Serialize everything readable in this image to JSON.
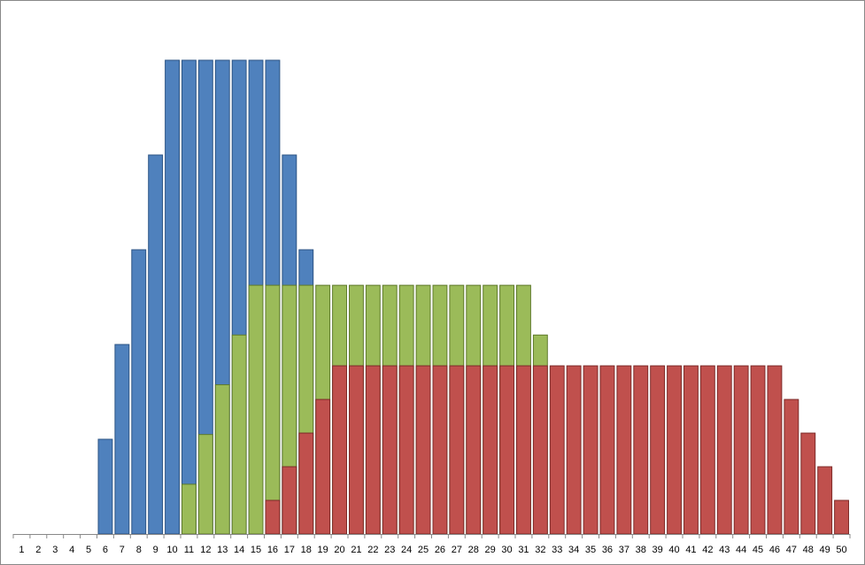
{
  "chart_data": {
    "type": "bar",
    "overlap": true,
    "categories": [
      "1",
      "2",
      "3",
      "4",
      "5",
      "6",
      "7",
      "8",
      "9",
      "10",
      "11",
      "12",
      "13",
      "14",
      "15",
      "16",
      "17",
      "18",
      "19",
      "20",
      "21",
      "22",
      "23",
      "24",
      "25",
      "26",
      "27",
      "28",
      "29",
      "30",
      "31",
      "32",
      "33",
      "34",
      "35",
      "36",
      "37",
      "38",
      "39",
      "40",
      "41",
      "42",
      "43",
      "44",
      "45",
      "46",
      "47",
      "48",
      "49",
      "50"
    ],
    "ylim": [
      0,
      100
    ],
    "series": [
      {
        "color": "#4f81bd",
        "stroke": "#2c5484",
        "values": [
          0,
          0,
          0,
          0,
          0,
          20,
          40,
          60,
          80,
          100,
          100,
          100,
          100,
          100,
          100,
          100,
          80,
          60,
          0,
          0,
          0,
          0,
          0,
          0,
          0,
          0,
          0,
          0,
          0,
          0,
          0,
          0,
          0,
          0,
          0,
          0,
          0,
          0,
          0,
          0,
          0,
          0,
          0,
          0,
          0,
          0,
          0,
          0,
          0,
          0
        ]
      },
      {
        "color": "#9bbb59",
        "stroke": "#5f7a2c",
        "values": [
          0,
          0,
          0,
          0,
          0,
          0,
          0,
          0,
          0,
          0,
          10.5,
          21,
          31.5,
          42,
          52.5,
          52.5,
          52.5,
          52.5,
          52.5,
          52.5,
          52.5,
          52.5,
          52.5,
          52.5,
          52.5,
          52.5,
          52.5,
          52.5,
          52.5,
          52.5,
          52.5,
          42,
          0,
          0,
          0,
          0,
          0,
          0,
          0,
          0,
          0,
          0,
          0,
          0,
          0,
          0,
          0,
          0,
          0,
          0
        ]
      },
      {
        "color": "#c0504d",
        "stroke": "#7d2a28",
        "values": [
          0,
          0,
          0,
          0,
          0,
          0,
          0,
          0,
          0,
          0,
          0,
          0,
          0,
          0,
          0,
          7.1,
          14.2,
          21.3,
          28.4,
          35.5,
          35.5,
          35.5,
          35.5,
          35.5,
          35.5,
          35.5,
          35.5,
          35.5,
          35.5,
          35.5,
          35.5,
          35.5,
          35.5,
          35.5,
          35.5,
          35.5,
          35.5,
          35.5,
          35.5,
          35.5,
          35.5,
          35.5,
          35.5,
          35.5,
          35.5,
          35.5,
          28.4,
          21.3,
          14.2,
          7.1
        ]
      }
    ]
  }
}
